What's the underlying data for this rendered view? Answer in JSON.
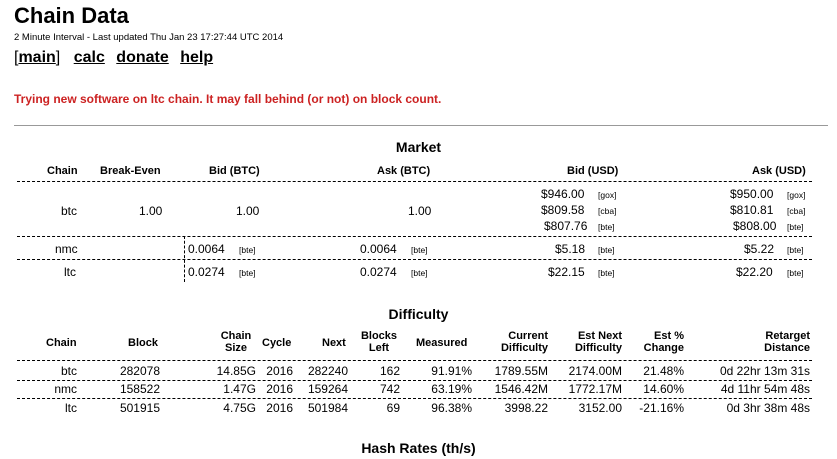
{
  "header": {
    "title": "Chain Data",
    "subtitle": "2 Minute Interval - Last updated Thu Jan 23 17:27:44 UTC 2014"
  },
  "nav": {
    "open_bracket": "[",
    "main": "main",
    "close_bracket": "]",
    "calc": "calc",
    "donate": "donate",
    "help": "help"
  },
  "notice": "Trying new software on ltc chain. It may fall behind (or not) on block count.",
  "market": {
    "title": "Market",
    "headers": {
      "chain": "Chain",
      "break_even": "Break-Even",
      "bid_btc": "Bid (BTC)",
      "ask_btc": "Ask (BTC)",
      "bid_usd": "Bid (USD)",
      "ask_usd": "Ask (USD)"
    },
    "btc": {
      "chain": "btc",
      "break_even": "1.00",
      "bid_btc": "1.00",
      "ask_btc": "1.00",
      "bid_usd": [
        {
          "value": "$946.00",
          "src": "[gox]"
        },
        {
          "value": "$809.58",
          "src": "[cba]"
        },
        {
          "value": "$807.76",
          "src": "[bte]"
        }
      ],
      "ask_usd": [
        {
          "value": "$950.00",
          "src": "[gox]"
        },
        {
          "value": "$810.81",
          "src": "[cba]"
        },
        {
          "value": "$808.00",
          "src": "[bte]"
        }
      ]
    },
    "nmc": {
      "chain": "nmc",
      "bid_btc": "0.0064",
      "bid_btc_src": "[bte]",
      "ask_btc": "0.0064",
      "ask_btc_src": "[bte]",
      "bid_usd": "$5.18",
      "bid_usd_src": "[bte]",
      "ask_usd": "$5.22",
      "ask_usd_src": "[bte]"
    },
    "ltc": {
      "chain": "ltc",
      "bid_btc": "0.0274",
      "bid_btc_src": "[bte]",
      "ask_btc": "0.0274",
      "ask_btc_src": "[bte]",
      "bid_usd": "$22.15",
      "bid_usd_src": "[bte]",
      "ask_usd": "$22.20",
      "ask_usd_src": "[bte]"
    }
  },
  "difficulty": {
    "title": "Difficulty",
    "headers": {
      "chain": "Chain",
      "block": "Block",
      "chain_size_1": "Chain",
      "chain_size_2": "Size",
      "cycle": "Cycle",
      "next": "Next",
      "blocks_left_1": "Blocks",
      "blocks_left_2": "Left",
      "measured": "Measured",
      "current_1": "Current",
      "current_2": "Difficulty",
      "est_next_1": "Est Next",
      "est_next_2": "Difficulty",
      "est_pct_1": "Est %",
      "est_pct_2": "Change",
      "retarget_1": "Retarget",
      "retarget_2": "Distance"
    },
    "rows": [
      {
        "chain": "btc",
        "block": "282078",
        "size": "14.85G",
        "cycle": "2016",
        "next": "282240",
        "left": "162",
        "measured": "91.91%",
        "current": "1789.55M",
        "est_next": "2174.00M",
        "est_pct": "21.48%",
        "retarget": "0d 22hr 13m 31s"
      },
      {
        "chain": "nmc",
        "block": "158522",
        "size": "1.47G",
        "cycle": "2016",
        "next": "159264",
        "left": "742",
        "measured": "63.19%",
        "current": "1546.42M",
        "est_next": "1772.17M",
        "est_pct": "14.60%",
        "retarget": "4d 11hr 54m 48s"
      },
      {
        "chain": "ltc",
        "block": "501915",
        "size": "4.75G",
        "cycle": "2016",
        "next": "501984",
        "left": "69",
        "measured": "96.38%",
        "current": "3998.22",
        "est_next": "3152.00",
        "est_pct": "-21.16%",
        "retarget": "0d 3hr 38m 48s"
      }
    ]
  },
  "hashrates": {
    "title": "Hash Rates (th/s)"
  }
}
